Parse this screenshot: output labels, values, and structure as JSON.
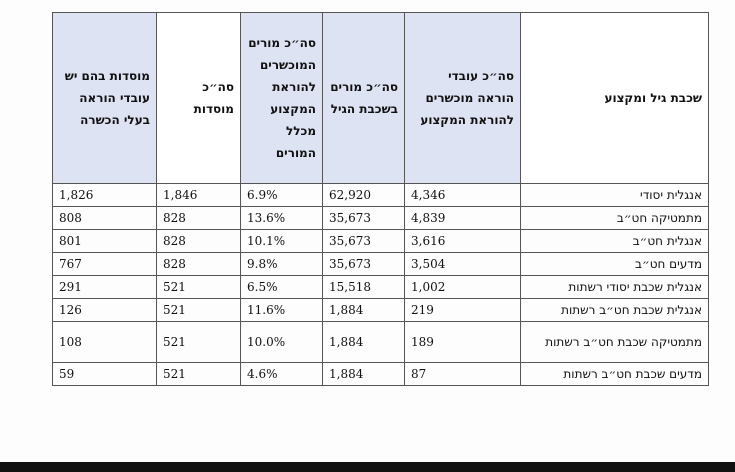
{
  "table": {
    "headers": {
      "institutions_with_trained": "מוסדות בהם יש עובדי הוראה בעלי הכשרה",
      "total_institutions": "סה״כ מוסדות",
      "pct_trained": "סה״כ מורים המוכשרים להוראת המקצוע מכלל המורים",
      "teachers_in_grade": "סה״כ מורים בשכבת הגיל",
      "trained_staff": "סה״כ עובדי הוראה מוכשרים להוראת המקצוע",
      "grade_subject": "שכבת גיל ומקצוע"
    },
    "rows": [
      {
        "institutions_with_trained": "1,826",
        "total_institutions": "1,846",
        "pct_trained": "6.9%",
        "teachers_in_grade": "62,920",
        "trained_staff": "4,346",
        "grade_subject": "אנגלית יסודי"
      },
      {
        "institutions_with_trained": "808",
        "total_institutions": "828",
        "pct_trained": "13.6%",
        "teachers_in_grade": "35,673",
        "trained_staff": "4,839",
        "grade_subject": "מתמטיקה חט״ב"
      },
      {
        "institutions_with_trained": "801",
        "total_institutions": "828",
        "pct_trained": "10.1%",
        "teachers_in_grade": "35,673",
        "trained_staff": "3,616",
        "grade_subject": "אנגלית חט״ב"
      },
      {
        "institutions_with_trained": "767",
        "total_institutions": "828",
        "pct_trained": "9.8%",
        "teachers_in_grade": "35,673",
        "trained_staff": "3,504",
        "grade_subject": "מדעים חט״ב"
      },
      {
        "institutions_with_trained": "291",
        "total_institutions": "521",
        "pct_trained": "6.5%",
        "teachers_in_grade": "15,518",
        "trained_staff": "1,002",
        "grade_subject": "אנגלית שכבת יסודי רשתות"
      },
      {
        "institutions_with_trained": "126",
        "total_institutions": "521",
        "pct_trained": "11.6%",
        "teachers_in_grade": "1,884",
        "trained_staff": "219",
        "grade_subject": "אנגלית שכבת חט״ב רשתות"
      },
      {
        "institutions_with_trained": "108",
        "total_institutions": "521",
        "pct_trained": "10.0%",
        "teachers_in_grade": "1,884",
        "trained_staff": "189",
        "grade_subject": "מתמטיקה שכבת חט״ב רשתות"
      },
      {
        "institutions_with_trained": "59",
        "total_institutions": "521",
        "pct_trained": "4.6%",
        "teachers_in_grade": "1,884",
        "trained_staff": "87",
        "grade_subject": "מדעים שכבת חט״ב רשתות"
      }
    ]
  }
}
